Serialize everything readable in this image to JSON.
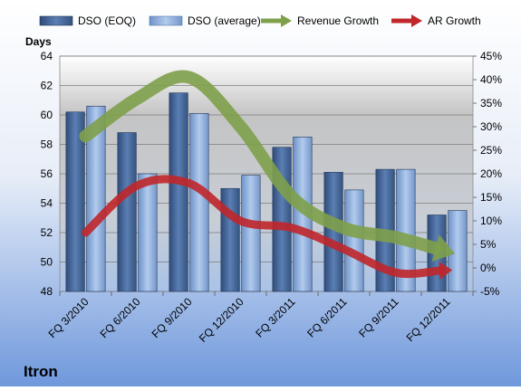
{
  "chart_data": {
    "type": "bar",
    "title": "Itron",
    "ylabel_left": "Days",
    "ylabel_right": "",
    "categories": [
      "FQ 3/2010",
      "FQ 6/2010",
      "FQ 9/2010",
      "FQ 12/2010",
      "FQ 3/2011",
      "FQ 6/2011",
      "FQ 9/2011",
      "FQ 12/2011"
    ],
    "ylim_left": [
      48,
      64
    ],
    "yticks_left": [
      48,
      50,
      52,
      54,
      56,
      58,
      60,
      62,
      64
    ],
    "ylim_right": [
      -5,
      45
    ],
    "yticks_right": [
      "-5%",
      "0%",
      "5%",
      "10%",
      "15%",
      "20%",
      "25%",
      "30%",
      "35%",
      "40%",
      "45%"
    ],
    "series": [
      {
        "name": "DSO (EOQ)",
        "axis": "left",
        "kind": "bar",
        "color": "#4a6a9c",
        "values": [
          60.2,
          58.8,
          61.5,
          55.0,
          57.8,
          56.1,
          56.3,
          53.2
        ]
      },
      {
        "name": "DSO (average)",
        "axis": "left",
        "kind": "bar",
        "color": "#8fb0da",
        "values": [
          60.6,
          56.0,
          60.1,
          55.9,
          58.5,
          54.9,
          56.3,
          53.5
        ]
      },
      {
        "name": "Revenue Growth",
        "axis": "right",
        "kind": "arrow-line",
        "color": "#7ea04a",
        "values": [
          28,
          36,
          40.5,
          30,
          15,
          8.5,
          6.5,
          3.5
        ]
      },
      {
        "name": "AR Growth",
        "axis": "right",
        "kind": "arrow-line",
        "color": "#c0262a",
        "values": [
          7.5,
          17.5,
          18,
          10,
          8.5,
          4,
          -1,
          -0.5
        ]
      }
    ],
    "grid": true,
    "legend": "top"
  }
}
